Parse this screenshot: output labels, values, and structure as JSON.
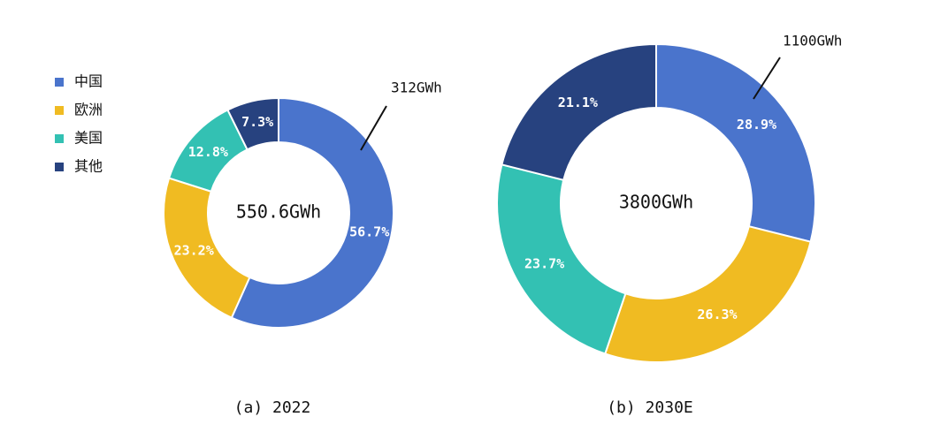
{
  "chart_data": [
    {
      "type": "pie",
      "categories": [
        "中国",
        "欧洲",
        "美国",
        "其他"
      ],
      "colors": [
        "#4a74cc",
        "#f0bb22",
        "#33c1b3",
        "#27427f"
      ],
      "values": [
        56.7,
        23.2,
        12.8,
        7.3
      ],
      "value_labels": [
        "56.7%",
        "23.2%",
        "12.8%",
        "7.3%"
      ],
      "center_label": "550.6GWh",
      "annotation": "312GWh",
      "caption": "(a) 2022",
      "legend": "left"
    },
    {
      "type": "pie",
      "colors": [
        "#4a74cc",
        "#f0bb22",
        "#33c1b3",
        "#27427f"
      ],
      "values": [
        28.9,
        26.3,
        23.7,
        21.1
      ],
      "value_labels": [
        "28.9%",
        "26.3%",
        "23.7%",
        "21.1%"
      ],
      "center_label": "3800GWh",
      "annotation": "1100GWh",
      "caption": "(b) 2030E"
    }
  ]
}
